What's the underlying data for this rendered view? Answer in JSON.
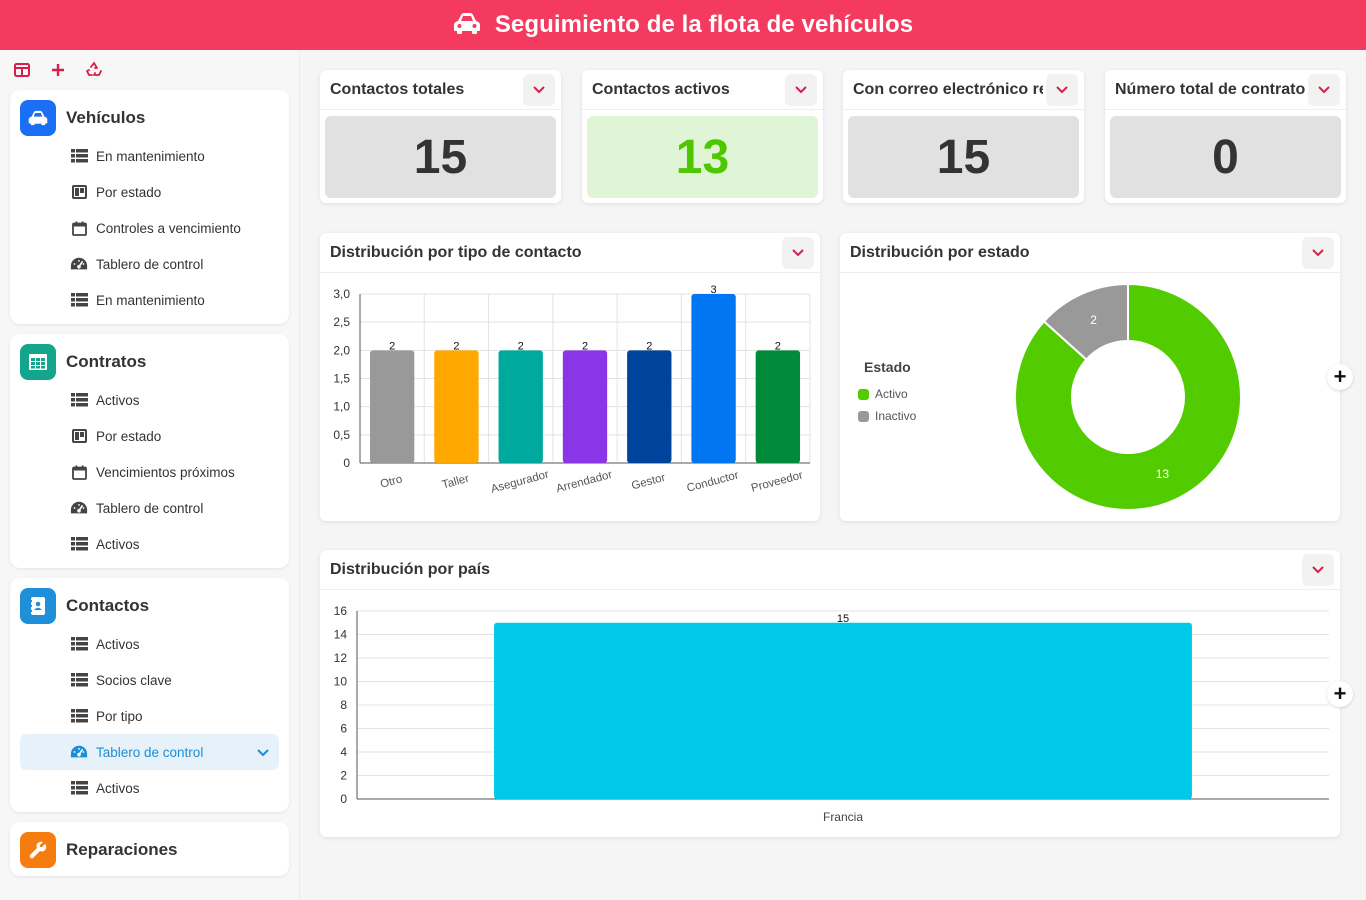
{
  "header": {
    "title": "Seguimiento de la flota de vehículos",
    "icon": "car-icon"
  },
  "sidebar": {
    "tools": [
      "panel-toggle-icon",
      "plus-icon",
      "recycle-icon"
    ],
    "sections": [
      {
        "title": "Vehículos",
        "color": "#1a6ff2",
        "icon": "car-icon",
        "items": [
          {
            "label": "En mantenimiento",
            "icon": "grid-list-icon"
          },
          {
            "label": "Por estado",
            "icon": "kanban-icon"
          },
          {
            "label": "Controles a vencimiento",
            "icon": "calendar-icon"
          },
          {
            "label": "Tablero de control",
            "icon": "gauge-icon"
          },
          {
            "label": "En mantenimiento",
            "icon": "grid-list-icon"
          }
        ]
      },
      {
        "title": "Contratos",
        "color": "#13a68c",
        "icon": "table-icon",
        "items": [
          {
            "label": "Activos",
            "icon": "grid-list-icon"
          },
          {
            "label": "Por estado",
            "icon": "kanban-icon"
          },
          {
            "label": "Vencimientos próximos",
            "icon": "calendar-icon"
          },
          {
            "label": "Tablero de control",
            "icon": "gauge-icon"
          },
          {
            "label": "Activos",
            "icon": "grid-list-icon"
          }
        ]
      },
      {
        "title": "Contactos",
        "color": "#1e8fd8",
        "icon": "contact-book-icon",
        "items": [
          {
            "label": "Activos",
            "icon": "grid-list-icon"
          },
          {
            "label": "Socios clave",
            "icon": "grid-list-icon"
          },
          {
            "label": "Por tipo",
            "icon": "grid-list-icon"
          },
          {
            "label": "Tablero de control",
            "icon": "gauge-icon",
            "active": true
          },
          {
            "label": "Activos",
            "icon": "grid-list-icon"
          }
        ]
      },
      {
        "title": "Reparaciones",
        "color": "#f57c0f",
        "icon": "wrench-icon",
        "items": []
      }
    ]
  },
  "stats": [
    {
      "title": "Contactos totales",
      "value": "15",
      "bg": "#e1e1e1",
      "color": "#333333"
    },
    {
      "title": "Contactos activos",
      "value": "13",
      "bg": "#dff5d5",
      "color": "#4ec700"
    },
    {
      "title": "Con correo electrónico re",
      "value": "15",
      "bg": "#e1e1e1",
      "color": "#333333"
    },
    {
      "title": "Número total de contratos",
      "value": "0",
      "bg": "#e1e1e1",
      "color": "#333333"
    }
  ],
  "charts": {
    "type_title": "Distribución por tipo de contacto",
    "status_title": "Distribución por estado",
    "country_title": "Distribución por país"
  },
  "chart_data": [
    {
      "type": "bar",
      "title": "Distribución por tipo de contacto",
      "categories": [
        "Otro",
        "Taller",
        "Asegurador",
        "Arrendador",
        "Gestor",
        "Conductor",
        "Proveedor"
      ],
      "values": [
        2,
        2,
        2,
        2,
        2,
        3,
        2
      ],
      "colors": [
        "#999999",
        "#ffa800",
        "#00a99d",
        "#8a35e6",
        "#00439c",
        "#0076f2",
        "#008a3a"
      ],
      "ylim": [
        0,
        3
      ],
      "yticks": [
        "0",
        "0,5",
        "1,0",
        "1,5",
        "2,0",
        "2,5",
        "3,0"
      ],
      "grid": true
    },
    {
      "type": "pie",
      "title": "Distribución por estado",
      "legend_title": "Estado",
      "legend_position": "left",
      "labels": [
        "Activo",
        "Inactivo"
      ],
      "values": [
        13,
        2
      ],
      "colors": [
        "#52cc00",
        "#999999"
      ]
    },
    {
      "type": "bar",
      "title": "Distribución por país",
      "categories": [
        "Francia"
      ],
      "values": [
        15
      ],
      "colors": [
        "#00c9ea"
      ],
      "ylim": [
        0,
        16
      ],
      "yticks": [
        "0",
        "2",
        "4",
        "6",
        "8",
        "10",
        "12",
        "14",
        "16"
      ],
      "grid": true
    }
  ]
}
